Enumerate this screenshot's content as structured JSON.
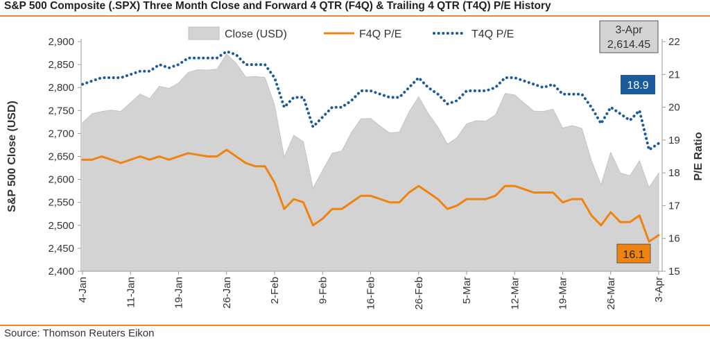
{
  "title": "S&P 500 Composite (.SPX) Three Month Close and Forward 4 QTR (F4Q) & Trailing 4 QTR (T4Q) P/E History",
  "source": "Source: Thomson Reuters Eikon",
  "chart_data": {
    "type": "area",
    "ylabel_left": "S&P 500 Close (USD)",
    "ylabel_right": "P/E Ratio",
    "y_left_range": [
      2400,
      2900
    ],
    "y_left_ticks": [
      "2,400",
      "2,450",
      "2,500",
      "2,550",
      "2,600",
      "2,650",
      "2,700",
      "2,750",
      "2,800",
      "2,850",
      "2,900"
    ],
    "y_right_range": [
      15,
      22
    ],
    "y_right_ticks": [
      "15",
      "16",
      "17",
      "18",
      "19",
      "20",
      "21",
      "22"
    ],
    "x_tick_labels": [
      "4-Jan",
      "11-Jan",
      "19-Jan",
      "26-Jan",
      "2-Feb",
      "9-Feb",
      "16-Feb",
      "26-Feb",
      "5-Mar",
      "12-Mar",
      "19-Mar",
      "26-Mar",
      "3-Apr"
    ],
    "x_tick_index": [
      0,
      5,
      10,
      15,
      20,
      25,
      30,
      35,
      40,
      45,
      50,
      55,
      60
    ],
    "legend_placement": "top",
    "series": [
      {
        "name": "Close (USD)",
        "axis": "left",
        "style": "area",
        "color": "#d3d3d3",
        "values": [
          2723,
          2743,
          2748,
          2751,
          2748,
          2767,
          2786,
          2776,
          2803,
          2798,
          2810,
          2833,
          2839,
          2838,
          2840,
          2873,
          2853,
          2823,
          2824,
          2822,
          2762,
          2649,
          2696,
          2682,
          2581,
          2620,
          2657,
          2662,
          2702,
          2732,
          2733,
          2716,
          2701,
          2703,
          2747,
          2780,
          2744,
          2714,
          2677,
          2691,
          2721,
          2728,
          2727,
          2740,
          2787,
          2784,
          2766,
          2749,
          2748,
          2753,
          2712,
          2717,
          2711,
          2641,
          2588,
          2659,
          2614,
          2608,
          2641,
          2582,
          2614
        ]
      },
      {
        "name": "F4Q P/E",
        "axis": "right",
        "style": "line",
        "color": "#f0820f",
        "values": [
          18.4,
          18.4,
          18.5,
          18.4,
          18.3,
          18.4,
          18.5,
          18.4,
          18.5,
          18.4,
          18.5,
          18.6,
          18.55,
          18.5,
          18.5,
          18.7,
          18.5,
          18.3,
          18.2,
          18.2,
          17.7,
          16.9,
          17.2,
          17.1,
          16.4,
          16.6,
          16.9,
          16.9,
          17.1,
          17.3,
          17.3,
          17.2,
          17.1,
          17.1,
          17.4,
          17.6,
          17.4,
          17.2,
          16.9,
          17.0,
          17.2,
          17.2,
          17.2,
          17.3,
          17.6,
          17.6,
          17.5,
          17.4,
          17.4,
          17.4,
          17.1,
          17.2,
          17.2,
          16.7,
          16.4,
          16.8,
          16.5,
          16.5,
          16.7,
          15.9,
          16.1
        ]
      },
      {
        "name": "T4Q P/E",
        "axis": "right",
        "style": "dotted",
        "color": "#1a5b9c",
        "values": [
          20.7,
          20.8,
          20.9,
          20.9,
          20.9,
          21.0,
          21.1,
          21.1,
          21.3,
          21.2,
          21.3,
          21.5,
          21.5,
          21.5,
          21.5,
          21.7,
          21.6,
          21.3,
          21.3,
          21.3,
          20.9,
          20.0,
          20.3,
          20.3,
          19.4,
          19.7,
          20.0,
          20.0,
          20.2,
          20.5,
          20.5,
          20.4,
          20.3,
          20.3,
          20.6,
          20.9,
          20.6,
          20.4,
          20.1,
          20.2,
          20.5,
          20.5,
          20.5,
          20.6,
          20.9,
          20.9,
          20.8,
          20.7,
          20.6,
          20.7,
          20.4,
          20.4,
          20.4,
          20.0,
          19.5,
          20.0,
          19.8,
          19.6,
          19.9,
          18.7,
          18.9
        ]
      }
    ],
    "annotations": [
      {
        "name": "last-date-box",
        "lines": [
          "3-Apr",
          "2,614.45"
        ],
        "bg": "#d3d3d3",
        "color": "#333333"
      },
      {
        "name": "t4q-last-value",
        "text": "18.9",
        "bg": "#1a5b9c",
        "color": "#ffffff"
      },
      {
        "name": "f4q-last-value",
        "text": "16.1",
        "bg": "#f0820f",
        "color": "#222222"
      }
    ]
  }
}
